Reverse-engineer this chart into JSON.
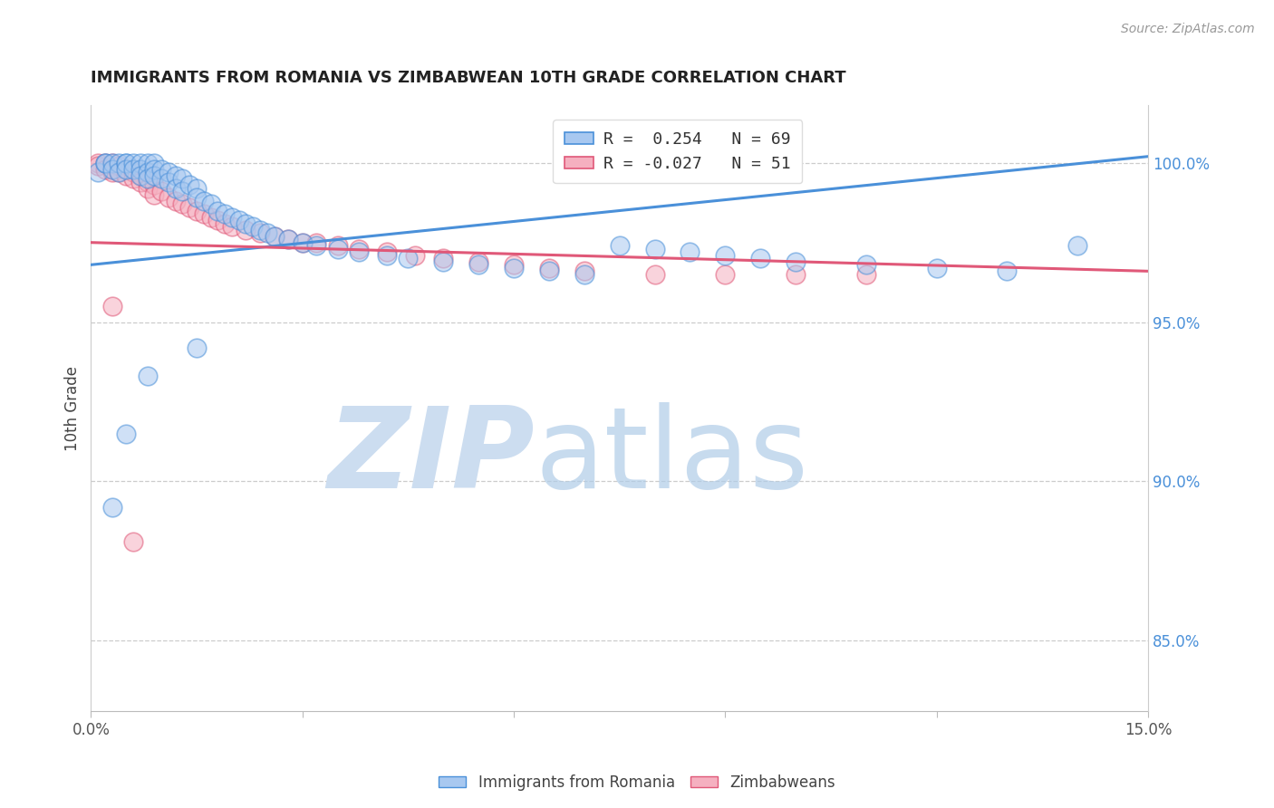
{
  "title": "IMMIGRANTS FROM ROMANIA VS ZIMBABWEAN 10TH GRADE CORRELATION CHART",
  "source": "Source: ZipAtlas.com",
  "ylabel": "10th Grade",
  "right_yticks": [
    "100.0%",
    "95.0%",
    "90.0%",
    "85.0%"
  ],
  "right_ytick_vals": [
    1.0,
    0.95,
    0.9,
    0.85
  ],
  "xmin": 0.0,
  "xmax": 0.15,
  "ymin": 0.828,
  "ymax": 1.018,
  "blue_color": "#a8c8f0",
  "pink_color": "#f5b0c0",
  "trendline_blue": "#4a90d9",
  "trendline_pink": "#e05878",
  "blue_trend_x": [
    0.0,
    0.15
  ],
  "blue_trend_y": [
    0.968,
    1.002
  ],
  "pink_trend_x": [
    0.0,
    0.15
  ],
  "pink_trend_y": [
    0.975,
    0.966
  ],
  "blue_scatter_x": [
    0.001,
    0.002,
    0.002,
    0.003,
    0.003,
    0.004,
    0.004,
    0.005,
    0.005,
    0.005,
    0.006,
    0.006,
    0.007,
    0.007,
    0.007,
    0.008,
    0.008,
    0.008,
    0.009,
    0.009,
    0.009,
    0.01,
    0.01,
    0.011,
    0.011,
    0.012,
    0.012,
    0.013,
    0.013,
    0.014,
    0.015,
    0.015,
    0.016,
    0.017,
    0.018,
    0.019,
    0.02,
    0.021,
    0.022,
    0.023,
    0.024,
    0.025,
    0.026,
    0.028,
    0.03,
    0.032,
    0.035,
    0.038,
    0.042,
    0.045,
    0.05,
    0.055,
    0.06,
    0.065,
    0.07,
    0.075,
    0.08,
    0.085,
    0.09,
    0.095,
    0.1,
    0.11,
    0.12,
    0.13,
    0.14,
    0.003,
    0.005,
    0.008,
    0.015
  ],
  "blue_scatter_y": [
    0.997,
    1.0,
    1.0,
    1.0,
    0.998,
    1.0,
    0.997,
    1.0,
    1.0,
    0.998,
    1.0,
    0.998,
    1.0,
    0.998,
    0.996,
    1.0,
    0.997,
    0.995,
    1.0,
    0.998,
    0.996,
    0.998,
    0.995,
    0.997,
    0.994,
    0.996,
    0.992,
    0.995,
    0.991,
    0.993,
    0.992,
    0.989,
    0.988,
    0.987,
    0.985,
    0.984,
    0.983,
    0.982,
    0.981,
    0.98,
    0.979,
    0.978,
    0.977,
    0.976,
    0.975,
    0.974,
    0.973,
    0.972,
    0.971,
    0.97,
    0.969,
    0.968,
    0.967,
    0.966,
    0.965,
    0.974,
    0.973,
    0.972,
    0.971,
    0.97,
    0.969,
    0.968,
    0.967,
    0.966,
    0.974,
    0.892,
    0.915,
    0.933,
    0.942
  ],
  "pink_scatter_x": [
    0.001,
    0.001,
    0.002,
    0.002,
    0.003,
    0.003,
    0.003,
    0.004,
    0.004,
    0.005,
    0.005,
    0.006,
    0.006,
    0.007,
    0.007,
    0.008,
    0.008,
    0.009,
    0.009,
    0.01,
    0.011,
    0.012,
    0.013,
    0.014,
    0.015,
    0.016,
    0.017,
    0.018,
    0.019,
    0.02,
    0.022,
    0.024,
    0.026,
    0.028,
    0.03,
    0.032,
    0.035,
    0.038,
    0.042,
    0.046,
    0.05,
    0.055,
    0.06,
    0.065,
    0.07,
    0.08,
    0.09,
    0.1,
    0.11,
    0.003,
    0.006
  ],
  "pink_scatter_y": [
    1.0,
    0.999,
    1.0,
    0.998,
    1.0,
    0.998,
    0.997,
    0.999,
    0.997,
    0.998,
    0.996,
    0.997,
    0.995,
    0.996,
    0.994,
    0.994,
    0.992,
    0.993,
    0.99,
    0.991,
    0.989,
    0.988,
    0.987,
    0.986,
    0.985,
    0.984,
    0.983,
    0.982,
    0.981,
    0.98,
    0.979,
    0.978,
    0.977,
    0.976,
    0.975,
    0.975,
    0.974,
    0.973,
    0.972,
    0.971,
    0.97,
    0.969,
    0.968,
    0.967,
    0.966,
    0.965,
    0.965,
    0.965,
    0.965,
    0.955,
    0.881
  ]
}
